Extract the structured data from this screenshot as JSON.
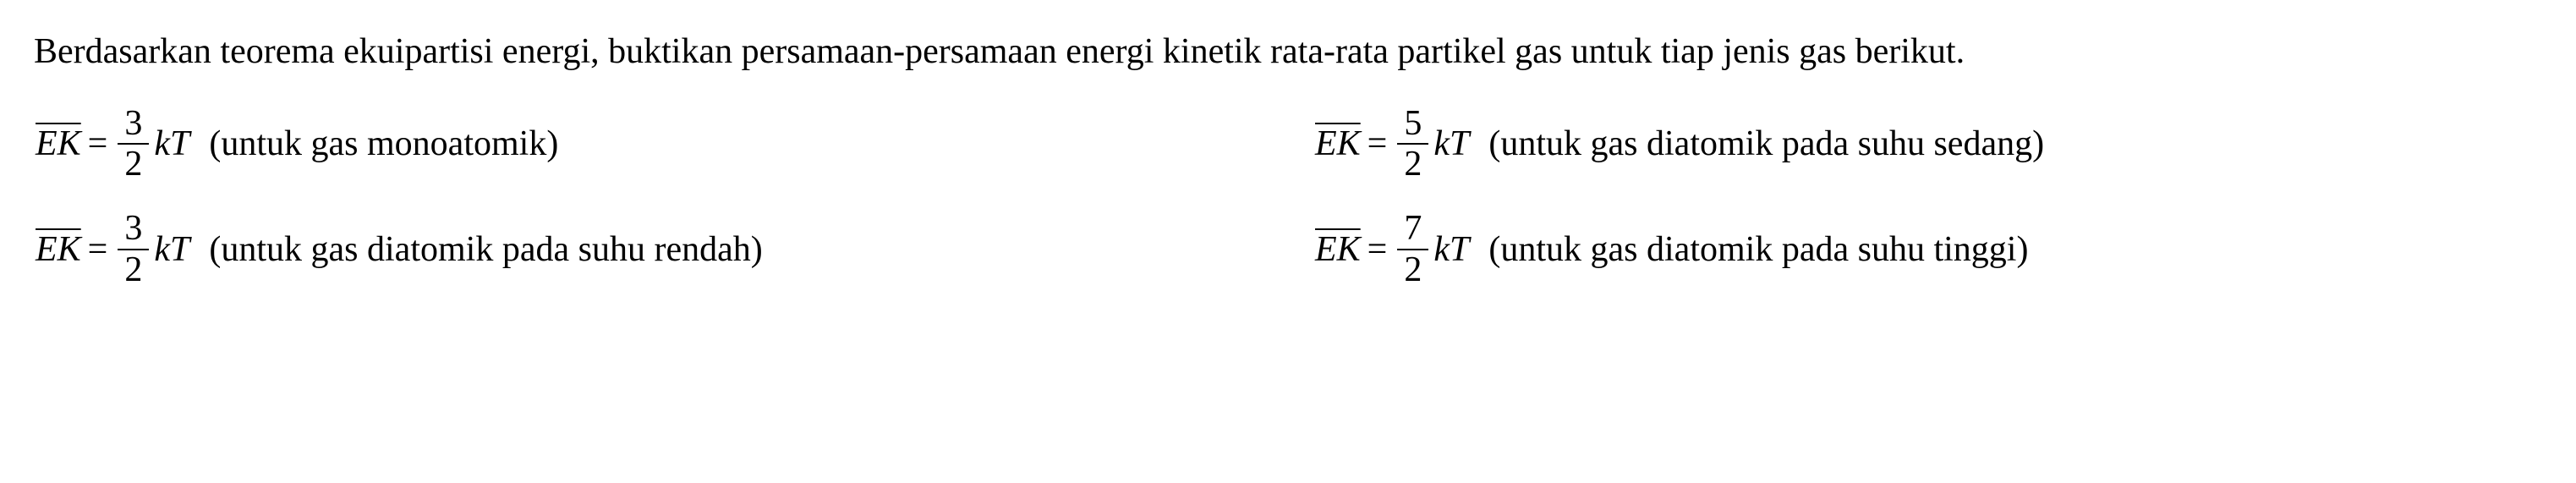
{
  "intro": {
    "text": "Berdasarkan teorema ekuipartisi energi, buktikan persamaan-persamaan energi kinetik rata-rata partikel gas untuk tiap jenis gas berikut."
  },
  "equations": {
    "eq1": {
      "variable": "EK",
      "equals": "=",
      "numerator": "3",
      "denominator": "2",
      "const_k": "k",
      "const_T": "T",
      "description": "(untuk gas monoatomik)"
    },
    "eq2": {
      "variable": "EK",
      "equals": "=",
      "numerator": "5",
      "denominator": "2",
      "const_k": "k",
      "const_T": "T",
      "description": "(untuk gas diatomik pada suhu sedang)"
    },
    "eq3": {
      "variable": "EK",
      "equals": "=",
      "numerator": "3",
      "denominator": "2",
      "const_k": "k",
      "const_T": "T",
      "description": "(untuk gas diatomik pada suhu rendah)"
    },
    "eq4": {
      "variable": "EK",
      "equals": "=",
      "numerator": "7",
      "denominator": "2",
      "const_k": "k",
      "const_T": "T",
      "description": "(untuk gas diatomik pada suhu tinggi)"
    }
  },
  "style": {
    "font_family": "Times New Roman",
    "font_size_body": 42,
    "text_color": "#000000",
    "background_color": "#ffffff",
    "overline_thickness": 2,
    "fraction_border_thickness": 2
  }
}
